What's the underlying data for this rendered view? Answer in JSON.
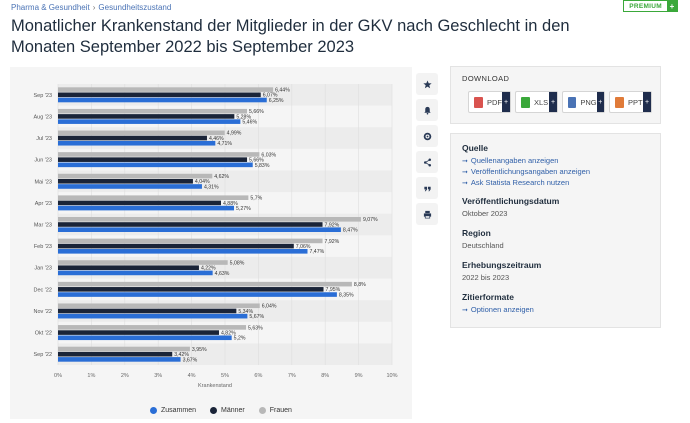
{
  "breadcrumb": {
    "item1": "Pharma & Gesundheit",
    "sep": "›",
    "item2": "Gesundheitszustand"
  },
  "premium": {
    "label": "PREMIUM",
    "plus": "+"
  },
  "title": "Monatlicher Krankenstand der Mitglieder in der GKV nach Geschlecht in den Monaten September 2022 bis September 2023",
  "toolbar": {
    "icons": [
      "star-icon",
      "bell-icon",
      "gear-icon",
      "share-icon",
      "quote-icon",
      "print-icon"
    ]
  },
  "download": {
    "title": "DOWNLOAD",
    "buttons": [
      {
        "label": "PDF",
        "color": "#d9534f"
      },
      {
        "label": "XLS",
        "color": "#3aa83a"
      },
      {
        "label": "PNG",
        "color": "#4a73b5"
      },
      {
        "label": "PPT",
        "color": "#e07b39"
      }
    ],
    "plus": "+"
  },
  "info": {
    "source_title": "Quelle",
    "source_links": [
      "Quellenangaben anzeigen",
      "Veröffentlichungsangaben anzeigen",
      "Ask Statista Research nutzen"
    ],
    "pubdate_title": "Veröffentlichungsdatum",
    "pubdate_value": "Oktober 2023",
    "region_title": "Region",
    "region_value": "Deutschland",
    "period_title": "Erhebungszeitraum",
    "period_value": "2022 bis 2023",
    "cite_title": "Zitierformate",
    "cite_link": "Optionen anzeigen",
    "arrow": "➞"
  },
  "colors": {
    "zusammen": "#2a6ed6",
    "maenner": "#1a2438",
    "frauen": "#b8b8b8"
  },
  "chart_data": {
    "type": "bar",
    "orientation": "horizontal",
    "title": "",
    "xlabel": "Krankenstand",
    "ylabel": "",
    "xlim": [
      0,
      10
    ],
    "xticks": [
      "0%",
      "1%",
      "2%",
      "3%",
      "4%",
      "5%",
      "6%",
      "7%",
      "8%",
      "9%",
      "10%"
    ],
    "categories": [
      "Sep '23",
      "Aug '23",
      "Jul '23",
      "Jun '23",
      "Mai '23",
      "Apr '23",
      "Mar '23",
      "Feb '23",
      "Jan '23",
      "Dec '22",
      "Nov '22",
      "Okt '22",
      "Sep '22"
    ],
    "series": [
      {
        "name": "Frauen",
        "values": [
          6.44,
          5.66,
          4.99,
          6.03,
          4.62,
          5.7,
          9.07,
          7.92,
          5.08,
          8.8,
          6.04,
          5.63,
          3.95
        ],
        "labels": [
          "6,44%",
          "5,66%",
          "4,99%",
          "6,03%",
          "4,62%",
          "5,7%",
          "9,07%",
          "7,92%",
          "5,08%",
          "8,8%",
          "6,04%",
          "5,63%",
          "3,95%"
        ]
      },
      {
        "name": "Männer",
        "values": [
          6.07,
          5.28,
          4.46,
          5.66,
          4.04,
          4.88,
          7.92,
          7.06,
          4.22,
          7.95,
          5.34,
          4.82,
          3.42
        ],
        "labels": [
          "6,07%",
          "5,28%",
          "4,46%",
          "5,66%",
          "4,04%",
          "4,88%",
          "7,92%",
          "7,06%",
          "4,22%",
          "7,95%",
          "5,34%",
          "4,82%",
          "3,42%"
        ]
      },
      {
        "name": "Zusammen",
        "values": [
          6.25,
          5.46,
          4.71,
          5.83,
          4.31,
          5.27,
          8.47,
          7.47,
          4.63,
          8.35,
          5.67,
          5.2,
          3.67
        ],
        "labels": [
          "6,25%",
          "5,46%",
          "4,71%",
          "5,83%",
          "4,31%",
          "5,27%",
          "8,47%",
          "7,47%",
          "4,63%",
          "8,35%",
          "5,67%",
          "5,2%",
          "3,67%"
        ]
      }
    ],
    "legend": [
      "Zusammen",
      "Männer",
      "Frauen"
    ]
  }
}
